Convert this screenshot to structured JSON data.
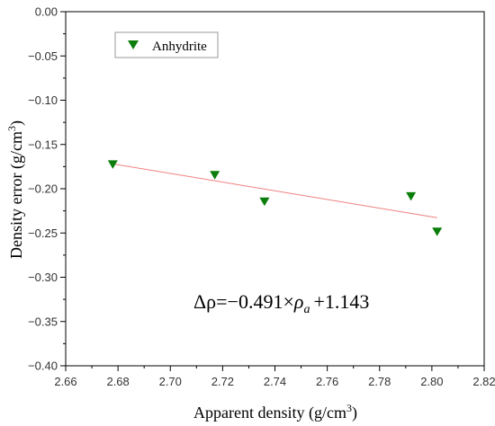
{
  "chart_data": {
    "type": "scatter",
    "xlabel": "Apparent density (g/cm",
    "xlabel_sup": "3",
    "xlabel_tail": ")",
    "ylabel": "Density error (g/cm",
    "ylabel_sup": "3",
    "ylabel_tail": ")",
    "xlim": [
      2.66,
      2.82
    ],
    "ylim": [
      -0.4,
      0.0
    ],
    "x_ticks": [
      2.66,
      2.68,
      2.7,
      2.72,
      2.74,
      2.76,
      2.78,
      2.8,
      2.82
    ],
    "x_tick_labels": [
      "2.66",
      "2.68",
      "2.70",
      "2.72",
      "2.74",
      "2.76",
      "2.78",
      "2.80",
      "2.82"
    ],
    "y_ticks": [
      0.0,
      -0.05,
      -0.1,
      -0.15,
      -0.2,
      -0.25,
      -0.3,
      -0.35,
      -0.4
    ],
    "y_tick_labels": [
      "0.00",
      "−0.05",
      "−0.10",
      "−0.15",
      "−0.20",
      "−0.25",
      "−0.30",
      "−0.35",
      "−0.40"
    ],
    "legend_position": "top-left",
    "series": [
      {
        "name": "Anhydrite",
        "marker": "triangle-down",
        "color": "#0a7d0a",
        "points": [
          {
            "x": 2.678,
            "y": -0.172
          },
          {
            "x": 2.717,
            "y": -0.184
          },
          {
            "x": 2.736,
            "y": -0.214
          },
          {
            "x": 2.792,
            "y": -0.208
          },
          {
            "x": 2.802,
            "y": -0.248
          }
        ]
      }
    ],
    "fit_line": {
      "color": "#f08080",
      "slope": -0.491,
      "intercept": 1.143,
      "x_range": [
        2.678,
        2.802
      ]
    },
    "equation": {
      "delta_rho": "Δρ",
      "eq": "=−0.491×",
      "rho": "ρ",
      "sub": "a",
      "tail": "+1.143"
    }
  }
}
